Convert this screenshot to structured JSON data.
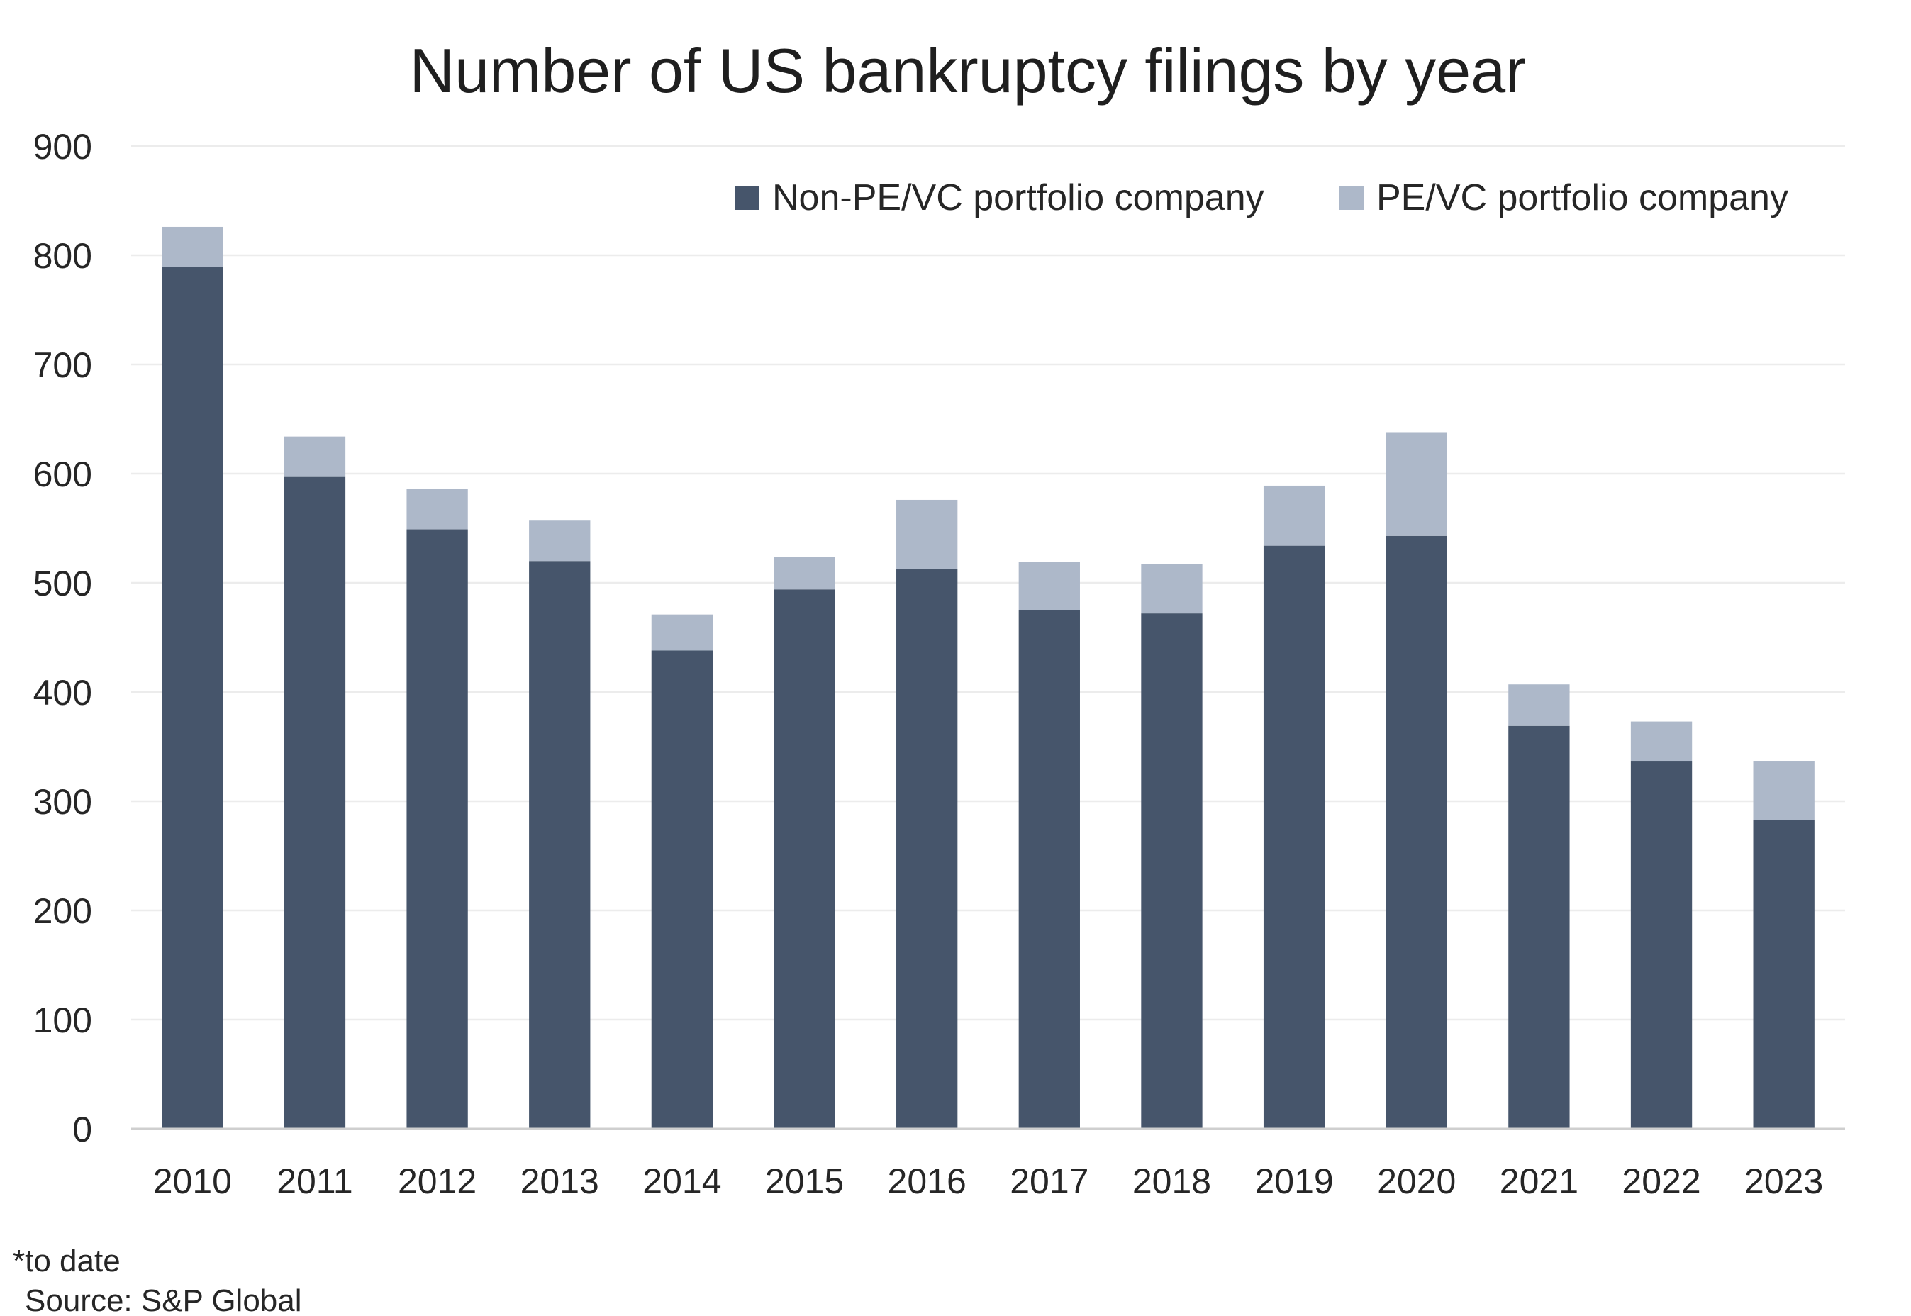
{
  "chart_data": {
    "type": "bar",
    "stacked": true,
    "title": "Number of US bankruptcy filings by year",
    "xlabel": "",
    "ylabel": "",
    "ylim": [
      0,
      900
    ],
    "yticks": [
      "0",
      "100",
      "200",
      "300",
      "400",
      "500",
      "600",
      "700",
      "800",
      "900"
    ],
    "categories": [
      "2010",
      "2011",
      "2012",
      "2013",
      "2014",
      "2015",
      "2016",
      "2017",
      "2018",
      "2019",
      "2020",
      "2021",
      "2022",
      "2023"
    ],
    "series": [
      {
        "name": "Non-PE/VC portfolio company",
        "color": "#46556b",
        "values": [
          789,
          597,
          549,
          520,
          438,
          494,
          513,
          475,
          472,
          534,
          543,
          369,
          337,
          283
        ]
      },
      {
        "name": "PE/VC portfolio company",
        "color": "#adb8c9",
        "values": [
          37,
          37,
          37,
          37,
          33,
          30,
          63,
          44,
          45,
          55,
          95,
          38,
          36,
          54
        ]
      }
    ],
    "grid": true,
    "legend_position": "top-right"
  },
  "footnotes": {
    "note": "*to date",
    "source": "Source: S&P Global"
  }
}
